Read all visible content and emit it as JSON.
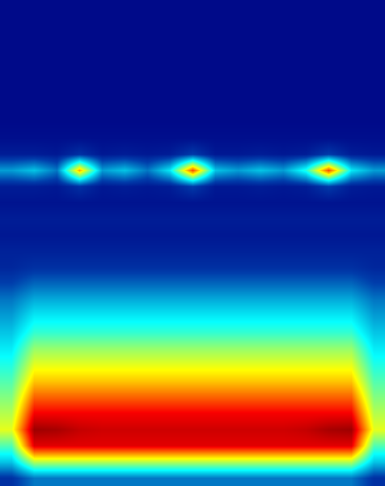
{
  "chart_data": {
    "type": "heatmap",
    "color": "Jet",
    "tick_labels": false,
    "zlim": [
      0,
      1
    ],
    "cells": [
      [
        0.02,
        0.02,
        0.02,
        0.02,
        0.02,
        0.02,
        0.02,
        0.02,
        0.02,
        0.02,
        0.02,
        0.02,
        0.02,
        0.02,
        0.02,
        0.02,
        0.02
      ],
      [
        0.02,
        0.02,
        0.02,
        0.02,
        0.02,
        0.02,
        0.02,
        0.02,
        0.02,
        0.02,
        0.02,
        0.02,
        0.02,
        0.02,
        0.02,
        0.02,
        0.02
      ],
      [
        0.02,
        0.02,
        0.02,
        0.02,
        0.02,
        0.02,
        0.02,
        0.02,
        0.02,
        0.02,
        0.02,
        0.02,
        0.02,
        0.02,
        0.02,
        0.02,
        0.02
      ],
      [
        0.02,
        0.02,
        0.02,
        0.02,
        0.02,
        0.02,
        0.02,
        0.02,
        0.02,
        0.02,
        0.02,
        0.02,
        0.02,
        0.02,
        0.02,
        0.02,
        0.02
      ],
      [
        0.02,
        0.02,
        0.02,
        0.02,
        0.02,
        0.02,
        0.02,
        0.02,
        0.02,
        0.02,
        0.02,
        0.02,
        0.02,
        0.02,
        0.02,
        0.02,
        0.02
      ],
      [
        0.02,
        0.02,
        0.02,
        0.02,
        0.02,
        0.02,
        0.02,
        0.02,
        0.02,
        0.02,
        0.02,
        0.02,
        0.02,
        0.02,
        0.02,
        0.02,
        0.02
      ],
      [
        0.02,
        0.02,
        0.02,
        0.02,
        0.02,
        0.02,
        0.02,
        0.02,
        0.02,
        0.02,
        0.02,
        0.02,
        0.02,
        0.02,
        0.02,
        0.02,
        0.02
      ],
      [
        0.02,
        0.02,
        0.02,
        0.02,
        0.02,
        0.02,
        0.02,
        0.02,
        0.02,
        0.02,
        0.02,
        0.02,
        0.02,
        0.02,
        0.02,
        0.02,
        0.02
      ],
      [
        0.03,
        0.03,
        0.03,
        0.03,
        0.03,
        0.03,
        0.03,
        0.03,
        0.03,
        0.03,
        0.03,
        0.03,
        0.03,
        0.03,
        0.03,
        0.03,
        0.03
      ],
      [
        0.06,
        0.06,
        0.05,
        0.1,
        0.05,
        0.06,
        0.05,
        0.06,
        0.12,
        0.05,
        0.05,
        0.06,
        0.05,
        0.06,
        0.12,
        0.06,
        0.05
      ],
      [
        0.25,
        0.3,
        0.2,
        0.7,
        0.25,
        0.3,
        0.2,
        0.35,
        0.8,
        0.3,
        0.25,
        0.3,
        0.25,
        0.4,
        0.8,
        0.35,
        0.25
      ],
      [
        0.06,
        0.06,
        0.05,
        0.1,
        0.05,
        0.06,
        0.05,
        0.06,
        0.12,
        0.05,
        0.05,
        0.06,
        0.05,
        0.06,
        0.12,
        0.06,
        0.05
      ],
      [
        0.04,
        0.04,
        0.04,
        0.04,
        0.04,
        0.04,
        0.04,
        0.04,
        0.04,
        0.04,
        0.04,
        0.04,
        0.04,
        0.04,
        0.04,
        0.04,
        0.04
      ],
      [
        0.06,
        0.06,
        0.06,
        0.06,
        0.06,
        0.06,
        0.06,
        0.06,
        0.06,
        0.06,
        0.06,
        0.06,
        0.06,
        0.06,
        0.06,
        0.06,
        0.06
      ],
      [
        0.05,
        0.05,
        0.05,
        0.05,
        0.05,
        0.05,
        0.05,
        0.05,
        0.05,
        0.05,
        0.05,
        0.05,
        0.05,
        0.05,
        0.05,
        0.05,
        0.05
      ],
      [
        0.07,
        0.07,
        0.07,
        0.07,
        0.07,
        0.07,
        0.07,
        0.07,
        0.07,
        0.07,
        0.07,
        0.07,
        0.07,
        0.07,
        0.07,
        0.07,
        0.07
      ],
      [
        0.08,
        0.1,
        0.1,
        0.1,
        0.1,
        0.1,
        0.1,
        0.1,
        0.1,
        0.1,
        0.1,
        0.1,
        0.1,
        0.1,
        0.1,
        0.1,
        0.08
      ],
      [
        0.13,
        0.18,
        0.18,
        0.18,
        0.18,
        0.18,
        0.18,
        0.18,
        0.18,
        0.18,
        0.18,
        0.18,
        0.18,
        0.18,
        0.18,
        0.18,
        0.13
      ],
      [
        0.2,
        0.27,
        0.27,
        0.27,
        0.27,
        0.27,
        0.27,
        0.27,
        0.27,
        0.27,
        0.27,
        0.27,
        0.27,
        0.27,
        0.27,
        0.27,
        0.2
      ],
      [
        0.25,
        0.35,
        0.35,
        0.35,
        0.35,
        0.35,
        0.35,
        0.35,
        0.35,
        0.35,
        0.35,
        0.35,
        0.35,
        0.35,
        0.35,
        0.35,
        0.25
      ],
      [
        0.3,
        0.42,
        0.42,
        0.42,
        0.42,
        0.42,
        0.42,
        0.42,
        0.42,
        0.42,
        0.42,
        0.42,
        0.42,
        0.42,
        0.42,
        0.42,
        0.3
      ],
      [
        0.35,
        0.52,
        0.52,
        0.52,
        0.52,
        0.52,
        0.52,
        0.52,
        0.52,
        0.52,
        0.52,
        0.52,
        0.52,
        0.52,
        0.52,
        0.52,
        0.35
      ],
      [
        0.4,
        0.6,
        0.6,
        0.6,
        0.6,
        0.6,
        0.6,
        0.6,
        0.6,
        0.6,
        0.6,
        0.6,
        0.6,
        0.6,
        0.6,
        0.6,
        0.4
      ],
      [
        0.45,
        0.68,
        0.68,
        0.68,
        0.68,
        0.68,
        0.68,
        0.68,
        0.68,
        0.68,
        0.68,
        0.68,
        0.68,
        0.68,
        0.68,
        0.68,
        0.45
      ],
      [
        0.5,
        0.78,
        0.78,
        0.78,
        0.78,
        0.78,
        0.78,
        0.78,
        0.78,
        0.78,
        0.78,
        0.78,
        0.78,
        0.78,
        0.78,
        0.78,
        0.5
      ],
      [
        0.55,
        0.88,
        0.88,
        0.88,
        0.88,
        0.88,
        0.88,
        0.88,
        0.88,
        0.88,
        0.88,
        0.88,
        0.88,
        0.88,
        0.88,
        0.88,
        0.55
      ],
      [
        0.6,
        0.97,
        0.96,
        0.93,
        0.92,
        0.92,
        0.92,
        0.92,
        0.92,
        0.92,
        0.92,
        0.92,
        0.92,
        0.93,
        0.96,
        0.97,
        0.6
      ],
      [
        0.45,
        0.9,
        0.9,
        0.9,
        0.9,
        0.9,
        0.9,
        0.9,
        0.9,
        0.9,
        0.9,
        0.9,
        0.9,
        0.9,
        0.9,
        0.9,
        0.45
      ],
      [
        0.3,
        0.55,
        0.55,
        0.55,
        0.55,
        0.55,
        0.55,
        0.55,
        0.55,
        0.55,
        0.55,
        0.55,
        0.55,
        0.55,
        0.55,
        0.55,
        0.3
      ],
      [
        0.1,
        0.2,
        0.2,
        0.2,
        0.2,
        0.2,
        0.2,
        0.2,
        0.2,
        0.2,
        0.2,
        0.2,
        0.2,
        0.2,
        0.2,
        0.2,
        0.1
      ]
    ]
  }
}
